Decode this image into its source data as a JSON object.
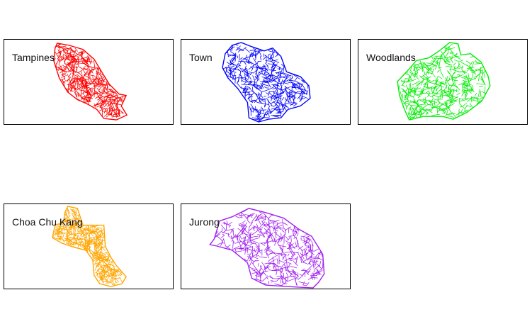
{
  "figure": {
    "panels": [
      {
        "title": "Tampines",
        "color": "#ff0000"
      },
      {
        "title": "Town",
        "color": "#0000ff"
      },
      {
        "title": "Woodlands",
        "color": "#00ee00"
      },
      {
        "title": "Choa Chu Kang",
        "color": "#ffa500"
      },
      {
        "title": "Jurong",
        "color": "#a020f0"
      }
    ]
  }
}
